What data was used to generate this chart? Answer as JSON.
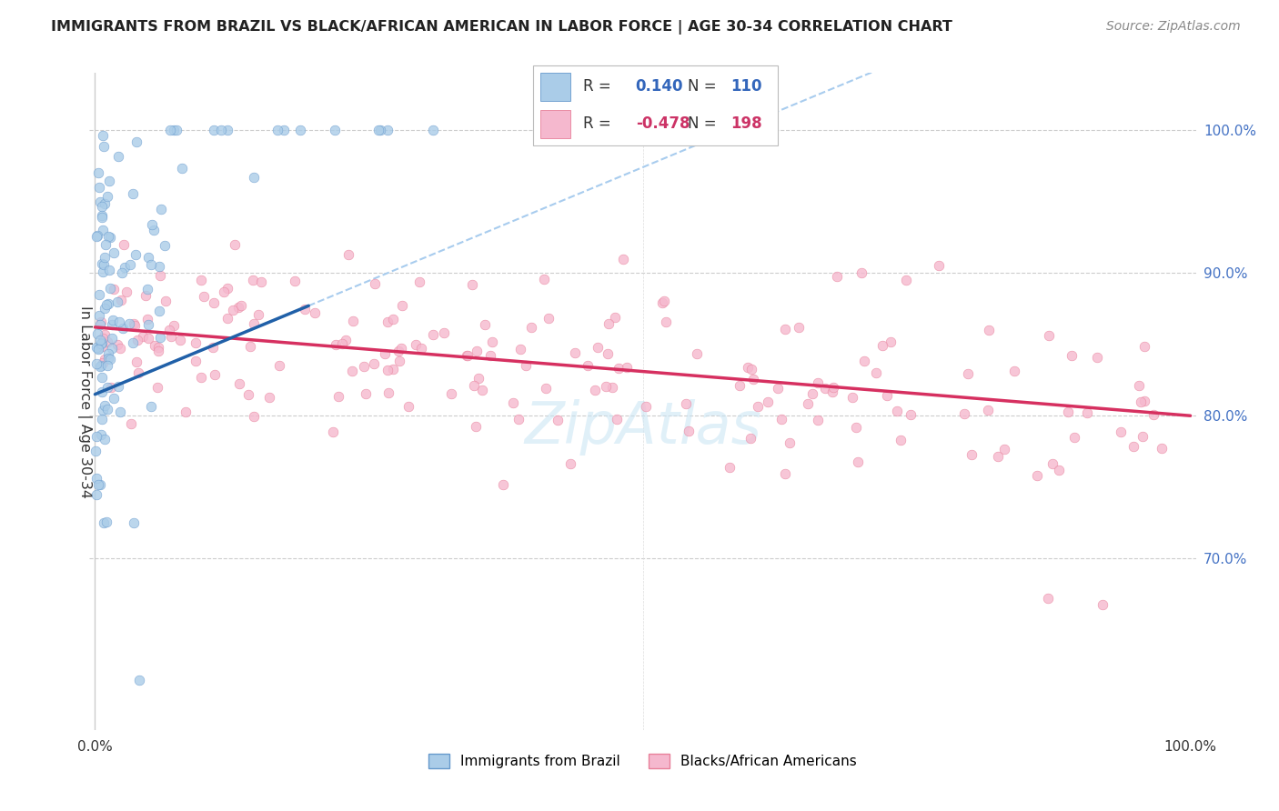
{
  "title": "IMMIGRANTS FROM BRAZIL VS BLACK/AFRICAN AMERICAN IN LABOR FORCE | AGE 30-34 CORRELATION CHART",
  "source": "Source: ZipAtlas.com",
  "ylabel": "In Labor Force | Age 30-34",
  "legend_R_blue": "0.140",
  "legend_N_blue": "110",
  "legend_R_pink": "-0.478",
  "legend_N_pink": "198",
  "blue_scatter_color": "#aacce8",
  "blue_scatter_edge": "#6699cc",
  "pink_scatter_color": "#f5b8ce",
  "pink_scatter_edge": "#e8809a",
  "blue_line_color": "#2060a8",
  "pink_line_color": "#d63060",
  "dashed_line_color": "#a8ccee",
  "tick_color": "#4472c4",
  "watermark": "ZipAtlas",
  "xlim": [
    -0.005,
    1.005
  ],
  "ylim": [
    0.58,
    1.04
  ],
  "yticks": [
    0.7,
    0.8,
    0.9,
    1.0
  ],
  "ytick_labels": [
    "70.0%",
    "80.0%",
    "90.0%",
    "100.0%"
  ],
  "blue_line_x0": 0.0,
  "blue_line_y0": 0.815,
  "blue_line_x1": 0.195,
  "blue_line_y1": 0.877,
  "pink_line_x0": 0.0,
  "pink_line_y0": 0.862,
  "pink_line_x1": 1.0,
  "pink_line_y1": 0.8
}
